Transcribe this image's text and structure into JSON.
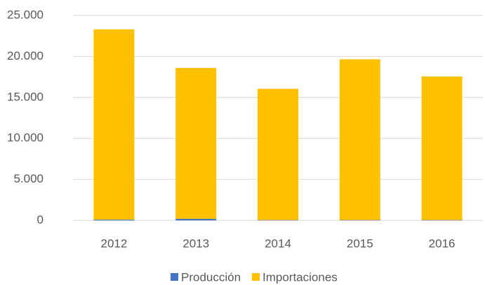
{
  "chart_data": {
    "type": "stacked_bar",
    "categories": [
      "2012",
      "2013",
      "2014",
      "2015",
      "2016"
    ],
    "series": [
      {
        "name": "Producción",
        "color": "#4472c4",
        "values": [
          100,
          200,
          50,
          50,
          50
        ]
      },
      {
        "name": "Importaciones",
        "color": "#ffc000",
        "values": [
          23200,
          18400,
          16000,
          19600,
          17500
        ]
      }
    ],
    "ylim": [
      0,
      25000
    ],
    "yticks": [
      0,
      {
        "value": 5000,
        "label": "5.000"
      },
      {
        "value": 10000,
        "label": "10.000"
      },
      {
        "value": 15000,
        "label": "15.000"
      },
      {
        "value": 20000,
        "label": "20.000"
      },
      {
        "value": 25000,
        "label": "25.000"
      }
    ],
    "grid": true,
    "legend": "bottom"
  }
}
